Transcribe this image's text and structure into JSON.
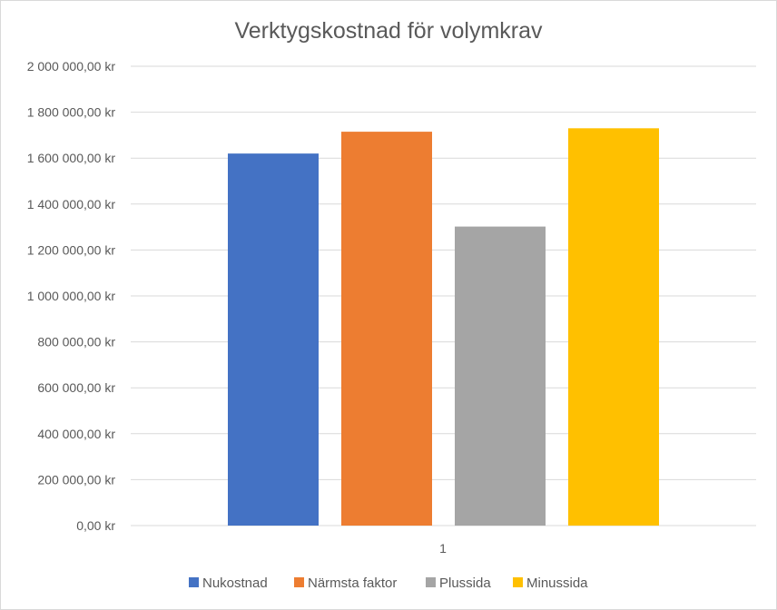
{
  "chart_data": {
    "type": "bar",
    "title": "Verktygskostnad för volymkrav",
    "categories": [
      "1"
    ],
    "series": [
      {
        "name": "Nukostnad",
        "values": [
          1620000
        ],
        "color": "#4472c4"
      },
      {
        "name": "Närmsta faktor",
        "values": [
          1715000
        ],
        "color": "#ed7d31"
      },
      {
        "name": "Plussida",
        "values": [
          1302000
        ],
        "color": "#a5a5a5"
      },
      {
        "name": "Minussida",
        "values": [
          1730000
        ],
        "color": "#ffc000"
      }
    ],
    "xlabel": "",
    "ylabel": "",
    "ylim": [
      0,
      2000000
    ],
    "y_ticks": [
      0,
      200000,
      400000,
      600000,
      800000,
      1000000,
      1200000,
      1400000,
      1600000,
      1800000,
      2000000
    ],
    "y_tick_labels": [
      "0,00 kr",
      "200 000,00 kr",
      "400 000,00 kr",
      "600 000,00 kr",
      "800 000,00 kr",
      "1 000 000,00 kr",
      "1 200 000,00 kr",
      "1 400 000,00 kr",
      "1 600 000,00 kr",
      "1 800 000,00 kr",
      "2 000 000,00 kr"
    ],
    "grid": true,
    "legend_position": "bottom"
  }
}
